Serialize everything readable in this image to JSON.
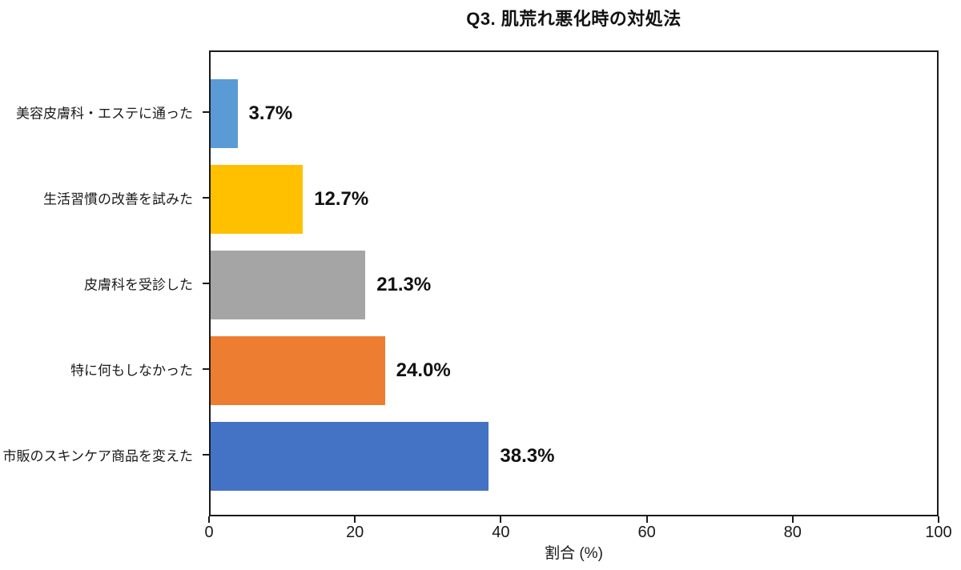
{
  "chart_data": {
    "type": "bar",
    "orientation": "horizontal",
    "title": "Q3. 肌荒れ悪化時の対処法",
    "xlabel": "割合 (%)",
    "ylabel": "",
    "categories": [
      "美容皮膚科・エステに通った",
      "生活習慣の改善を試みた",
      "皮膚科を受診した",
      "特に何もしなかった",
      "市販のスキンケア商品を変えた"
    ],
    "values": [
      3.7,
      12.7,
      21.3,
      24.0,
      38.3
    ],
    "value_labels": [
      "3.7%",
      "12.7%",
      "21.3%",
      "24.0%",
      "38.3%"
    ],
    "bar_colors": [
      "#5B9BD5",
      "#FFC000",
      "#A5A5A5",
      "#ED7D31",
      "#4472C4"
    ],
    "xlim": [
      0,
      100
    ],
    "xticks": [
      0,
      20,
      40,
      60,
      80,
      100
    ],
    "grid": false,
    "legend": "none",
    "plot_border_color": "#1a1a1a",
    "background_color": "#ffffff"
  }
}
